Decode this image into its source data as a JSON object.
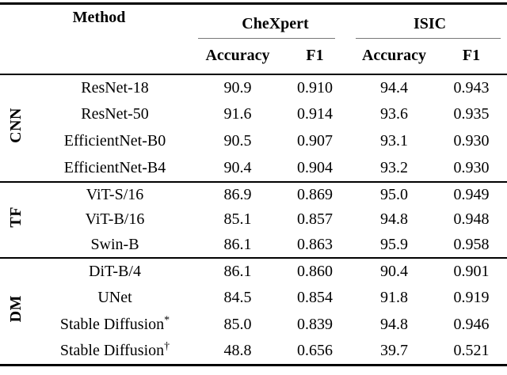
{
  "page": {
    "background": "#ffffff",
    "text_color": "#000000",
    "heavy_rule_color": "#000000",
    "light_rule_color": "#777777"
  },
  "table": {
    "header": {
      "method": "Method",
      "datasets": [
        {
          "label": "CheXpert",
          "columns": [
            "Accuracy",
            "F1"
          ]
        },
        {
          "label": "ISIC",
          "columns": [
            "Accuracy",
            "F1"
          ]
        }
      ]
    },
    "groups": [
      {
        "label": "CNN",
        "rows": [
          {
            "method": "ResNet-18",
            "values": [
              "90.9",
              "0.910",
              "94.4",
              "0.943"
            ]
          },
          {
            "method": "ResNet-50",
            "values": [
              "91.6",
              "0.914",
              "93.6",
              "0.935"
            ]
          },
          {
            "method": "EfficientNet-B0",
            "values": [
              "90.5",
              "0.907",
              "93.1",
              "0.930"
            ]
          },
          {
            "method": "EfficientNet-B4",
            "values": [
              "90.4",
              "0.904",
              "93.2",
              "0.930"
            ]
          }
        ]
      },
      {
        "label": "TF",
        "rows": [
          {
            "method": "ViT-S/16",
            "values": [
              "86.9",
              "0.869",
              "95.0",
              "0.949"
            ]
          },
          {
            "method": "ViT-B/16",
            "values": [
              "85.1",
              "0.857",
              "94.8",
              "0.948"
            ]
          },
          {
            "method": "Swin-B",
            "values": [
              "86.1",
              "0.863",
              "95.9",
              "0.958"
            ]
          }
        ]
      },
      {
        "label": "DM",
        "rows": [
          {
            "method": "DiT-B/4",
            "values": [
              "86.1",
              "0.860",
              "90.4",
              "0.901"
            ]
          },
          {
            "method": "UNet",
            "values": [
              "84.5",
              "0.854",
              "91.8",
              "0.919"
            ]
          },
          {
            "method": "Stable Diffusion",
            "method_sup": "*",
            "values": [
              "85.0",
              "0.839",
              "94.8",
              "0.946"
            ]
          },
          {
            "method": "Stable Diffusion",
            "method_sup": "†",
            "values": [
              "48.8",
              "0.656",
              "39.7",
              "0.521"
            ]
          }
        ]
      }
    ]
  }
}
